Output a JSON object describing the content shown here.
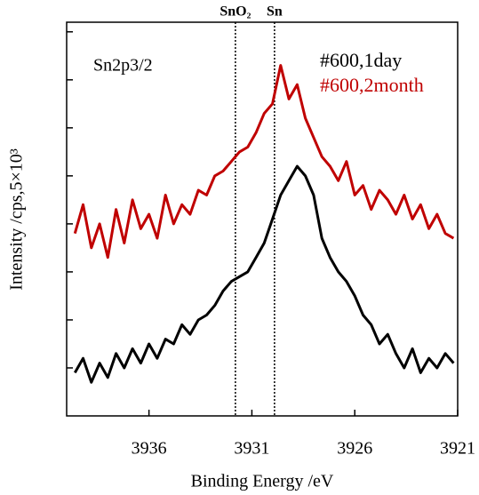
{
  "chart_data": {
    "type": "line",
    "annotation": "Sn2p3/2",
    "xlabel": "Binding  Energy /eV",
    "ylabel": "Intensity /cps,5×10³",
    "x": [
      3939.6,
      3939.2,
      3938.8,
      3938.4,
      3938.0,
      3937.6,
      3937.2,
      3936.8,
      3936.4,
      3936.0,
      3935.6,
      3935.2,
      3934.8,
      3934.4,
      3934.0,
      3933.6,
      3933.2,
      3932.8,
      3932.4,
      3932.0,
      3931.6,
      3931.2,
      3930.8,
      3930.4,
      3930.0,
      3929.6,
      3929.2,
      3928.8,
      3928.4,
      3928.0,
      3927.6,
      3927.2,
      3926.8,
      3926.4,
      3926.0,
      3925.6,
      3925.2,
      3924.8,
      3924.4,
      3924.0,
      3923.6,
      3923.2,
      3922.8,
      3922.4,
      3922.0,
      3921.6,
      3921.2
    ],
    "series": [
      {
        "name": "#600,1day",
        "color": "#000000",
        "values": [
          0.9,
          1.2,
          0.7,
          1.1,
          0.8,
          1.3,
          1.0,
          1.4,
          1.1,
          1.5,
          1.2,
          1.6,
          1.5,
          1.9,
          1.7,
          2.0,
          2.1,
          2.3,
          2.6,
          2.8,
          2.9,
          3.0,
          3.3,
          3.6,
          4.1,
          4.6,
          4.9,
          5.2,
          5.0,
          4.6,
          3.7,
          3.3,
          3.0,
          2.8,
          2.5,
          2.1,
          1.9,
          1.5,
          1.7,
          1.3,
          1.0,
          1.4,
          0.9,
          1.2,
          1.0,
          1.3,
          1.1
        ]
      },
      {
        "name": "#600,2month",
        "color": "#c00000",
        "values": [
          3.8,
          4.4,
          3.5,
          4.0,
          3.3,
          4.3,
          3.6,
          4.5,
          3.9,
          4.2,
          3.7,
          4.6,
          4.0,
          4.4,
          4.2,
          4.7,
          4.6,
          5.0,
          5.1,
          5.3,
          5.5,
          5.6,
          5.9,
          6.3,
          6.5,
          7.3,
          6.6,
          6.9,
          6.2,
          5.8,
          5.4,
          5.2,
          4.9,
          5.3,
          4.6,
          4.8,
          4.3,
          4.7,
          4.5,
          4.2,
          4.6,
          4.1,
          4.4,
          3.9,
          4.2,
          3.8,
          3.7
        ]
      }
    ],
    "vlines": [
      {
        "x": 3931.8,
        "label": "SnO₂"
      },
      {
        "x": 3929.9,
        "label": "Sn"
      }
    ],
    "xlim": [
      3940,
      3921
    ],
    "xticks": [
      3936,
      3931,
      3926,
      3921
    ],
    "ylim": [
      0,
      8.2
    ],
    "yticks": [
      1,
      2,
      3,
      4,
      5,
      6,
      7,
      8
    ]
  }
}
